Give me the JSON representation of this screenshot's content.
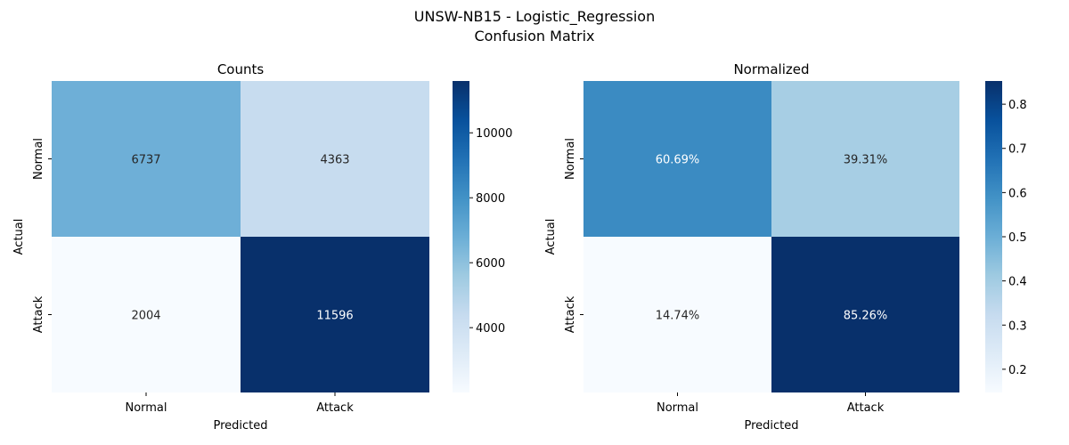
{
  "figure": {
    "title_line1": "UNSW-NB15 - Logistic_Regression",
    "title_line2": "Confusion Matrix"
  },
  "chart_data": [
    {
      "type": "heatmap",
      "title": "Counts",
      "xlabel": "Predicted",
      "ylabel": "Actual",
      "x_categories": [
        "Normal",
        "Attack"
      ],
      "y_categories": [
        "Normal",
        "Attack"
      ],
      "values": [
        [
          6737,
          4363
        ],
        [
          2004,
          11596
        ]
      ],
      "cell_labels": [
        [
          "6737",
          "4363"
        ],
        [
          "2004",
          "11596"
        ]
      ],
      "colormap": "Blues",
      "vmin": 2004,
      "vmax": 11596,
      "colorbar_ticks": [
        4000,
        6000,
        8000,
        10000
      ],
      "colorbar_tick_labels": [
        "4000",
        "6000",
        "8000",
        "10000"
      ]
    },
    {
      "type": "heatmap",
      "title": "Normalized",
      "xlabel": "Predicted",
      "ylabel": "Actual",
      "x_categories": [
        "Normal",
        "Attack"
      ],
      "y_categories": [
        "Normal",
        "Attack"
      ],
      "values": [
        [
          0.6069,
          0.3931
        ],
        [
          0.1474,
          0.8526
        ]
      ],
      "cell_labels": [
        [
          "60.69%",
          "39.31%"
        ],
        [
          "14.74%",
          "85.26%"
        ]
      ],
      "colormap": "Blues",
      "vmin": 0.1474,
      "vmax": 0.8526,
      "colorbar_ticks": [
        0.2,
        0.3,
        0.4,
        0.5,
        0.6,
        0.7,
        0.8
      ],
      "colorbar_tick_labels": [
        "0.2",
        "0.3",
        "0.4",
        "0.5",
        "0.6",
        "0.7",
        "0.8"
      ]
    }
  ]
}
